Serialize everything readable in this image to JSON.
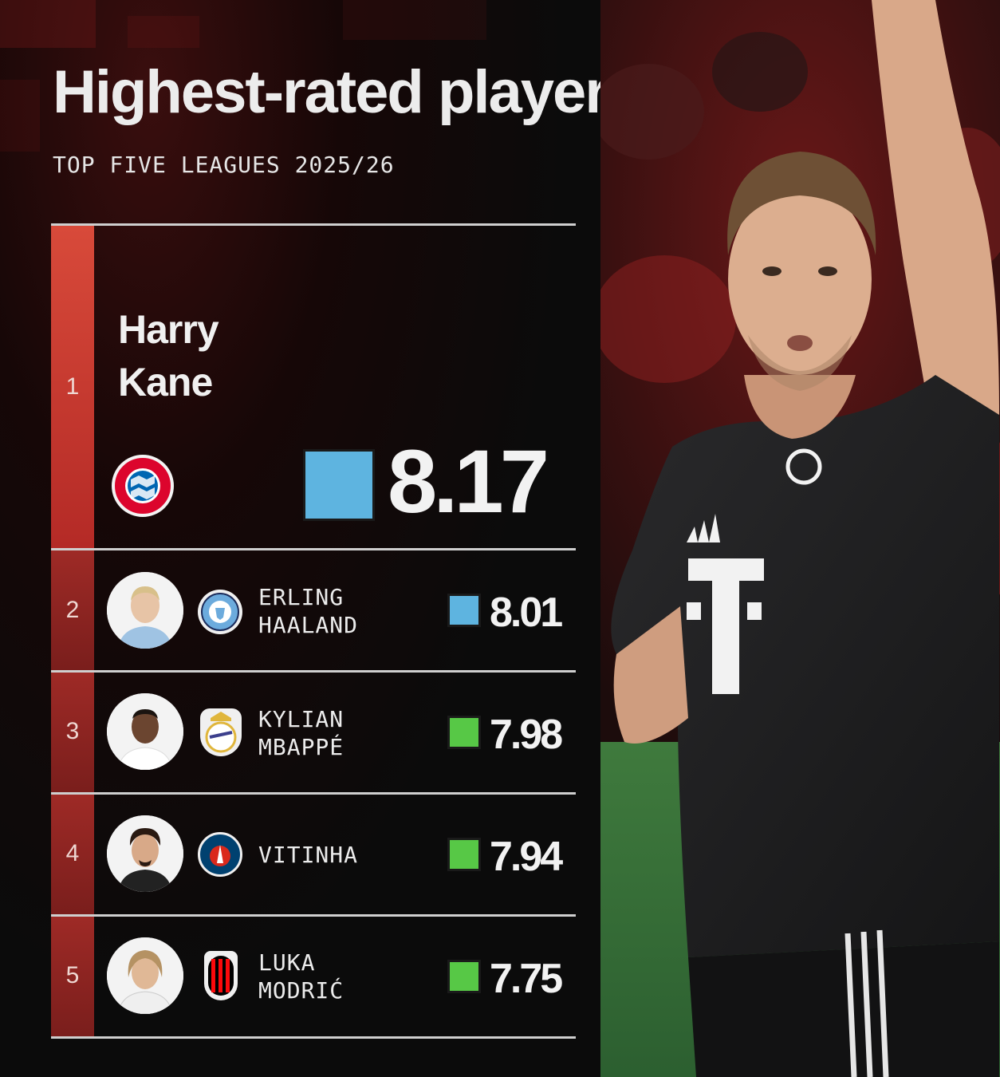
{
  "header": {
    "title": "Highest-rated players",
    "subtitle": "TOP FIVE LEAGUES 2025/26"
  },
  "colors": {
    "rank_bar": "#c7352c",
    "score_blue": "#5eb4e0",
    "score_green": "#57c846",
    "text": "#f0f0f0"
  },
  "players": [
    {
      "rank": "1",
      "first": "Harry",
      "last": "Kane",
      "club_icon": "bayern-munich-badge-icon",
      "rating": "8.17",
      "rating_color": "blue"
    },
    {
      "rank": "2",
      "name": "ERLING\nHAALAND",
      "club_icon": "manchester-city-badge-icon",
      "rating": "8.01",
      "rating_color": "blue"
    },
    {
      "rank": "3",
      "name": "KYLIAN\nMBAPPÉ",
      "club_icon": "real-madrid-badge-icon",
      "rating": "7.98",
      "rating_color": "green"
    },
    {
      "rank": "4",
      "name": "VITINHA",
      "club_icon": "psg-badge-icon",
      "rating": "7.94",
      "rating_color": "green"
    },
    {
      "rank": "5",
      "name": "LUKA\nMODRIĆ",
      "club_icon": "ac-milan-badge-icon",
      "rating": "7.75",
      "rating_color": "green"
    }
  ]
}
